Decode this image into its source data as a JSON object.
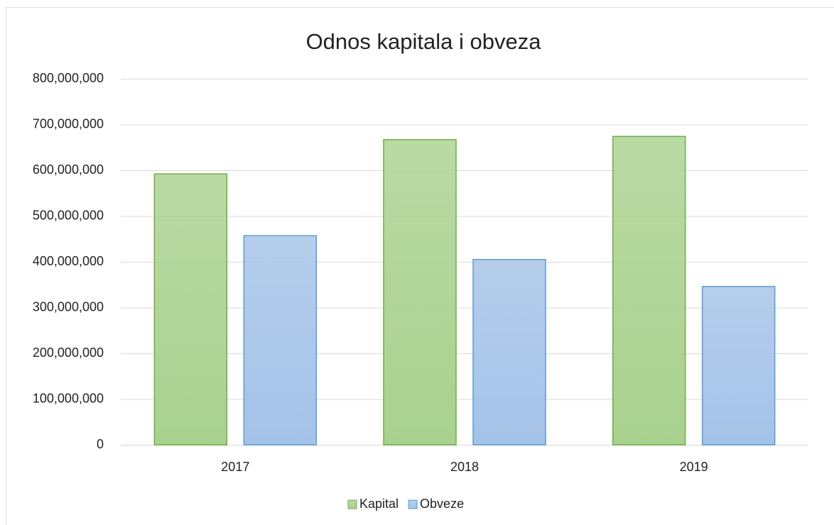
{
  "chart_data": {
    "type": "bar",
    "title": "Odnos kapitala i obveza",
    "categories": [
      "2017",
      "2018",
      "2019"
    ],
    "series": [
      {
        "name": "Kapital",
        "color": "#a9d18e",
        "edge": "#70ad47",
        "values": [
          592000000,
          667000000,
          674000000
        ]
      },
      {
        "name": "Obveze",
        "color": "#a4c2e8",
        "edge": "#5b9bd5",
        "values": [
          457000000,
          405000000,
          346000000
        ]
      }
    ],
    "ylim": [
      0,
      800000000
    ],
    "yticks": [
      0,
      {
        "value": 100000000,
        "label": "100,000,000"
      },
      {
        "value": 200000000,
        "label": "200,000,000"
      },
      {
        "value": 300000000,
        "label": "300,000,000"
      },
      {
        "value": 400000000,
        "label": "400,000,000"
      },
      {
        "value": 500000000,
        "label": "500,000,000"
      },
      {
        "value": 600000000,
        "label": "600,000,000"
      },
      {
        "value": 700000000,
        "label": "700,000,000"
      },
      {
        "value": 800000000,
        "label": "800,000,000"
      }
    ],
    "grid": true,
    "legend": "bottom"
  }
}
